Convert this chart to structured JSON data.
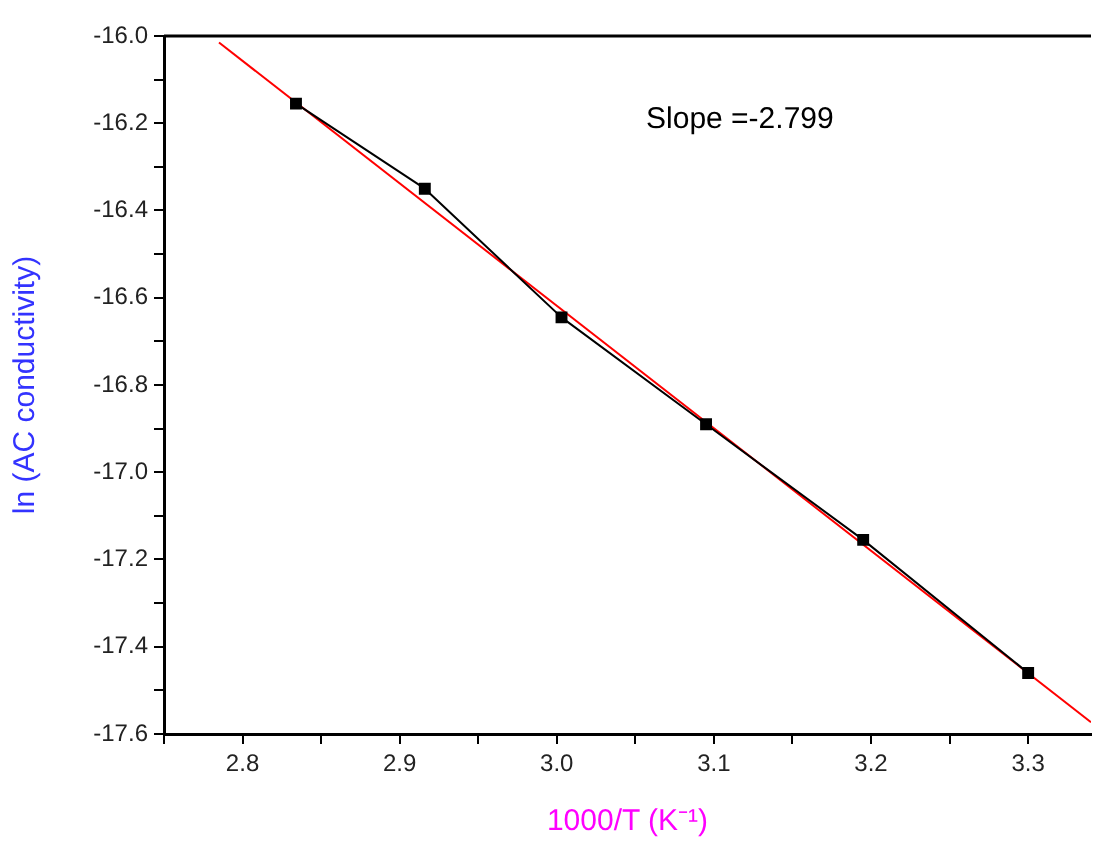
{
  "chart_data": {
    "type": "line",
    "xlabel": "1000/T (K⁻¹)",
    "ylabel": "ln (AC conductivity)",
    "annotations": [
      "Slope =-2.799"
    ],
    "series": [
      {
        "color": "#000000",
        "marker": "square",
        "x": [
          2.834,
          2.916,
          3.003,
          3.095,
          3.195,
          3.3
        ],
        "values": [
          -16.155,
          -16.35,
          -16.645,
          -16.89,
          -17.155,
          -17.46
        ]
      },
      {
        "type": "line",
        "color": "#ff0000",
        "marker": "none",
        "x": [
          2.785,
          3.34
        ],
        "values": [
          -16.015,
          -17.573
        ]
      }
    ],
    "xlim": [
      2.75,
      3.34
    ],
    "xticks": [
      {
        "value": 2.75,
        "label": null
      },
      {
        "value": 2.8,
        "label": "2.8"
      },
      {
        "value": 2.85,
        "label": null
      },
      {
        "value": 2.9,
        "label": "2.9"
      },
      {
        "value": 2.95,
        "label": null
      },
      {
        "value": 3.0,
        "label": "3.0"
      },
      {
        "value": 3.05,
        "label": null
      },
      {
        "value": 3.1,
        "label": "3.1"
      },
      {
        "value": 3.15,
        "label": null
      },
      {
        "value": 3.2,
        "label": "3.2"
      },
      {
        "value": 3.25,
        "label": null
      },
      {
        "value": 3.3,
        "label": "3.3"
      }
    ],
    "ylim": [
      -17.6,
      -16.0
    ],
    "yticks": [
      {
        "value": -16.0,
        "label": "-16.0"
      },
      {
        "value": -16.1,
        "label": null
      },
      {
        "value": -16.2,
        "label": "-16.2"
      },
      {
        "value": -16.3,
        "label": null
      },
      {
        "value": -16.4,
        "label": "-16.4"
      },
      {
        "value": -16.5,
        "label": null
      },
      {
        "value": -16.6,
        "label": "-16.6"
      },
      {
        "value": -16.7,
        "label": null
      },
      {
        "value": -16.8,
        "label": "-16.8"
      },
      {
        "value": -16.9,
        "label": null
      },
      {
        "value": -17.0,
        "label": "-17.0"
      },
      {
        "value": -17.1,
        "label": null
      },
      {
        "value": -17.2,
        "label": "-17.2"
      },
      {
        "value": -17.3,
        "label": null
      },
      {
        "value": -17.4,
        "label": "-17.4"
      },
      {
        "value": -17.5,
        "label": null
      },
      {
        "value": -17.6,
        "label": "-17.6"
      }
    ],
    "grid": false,
    "legend": false
  }
}
